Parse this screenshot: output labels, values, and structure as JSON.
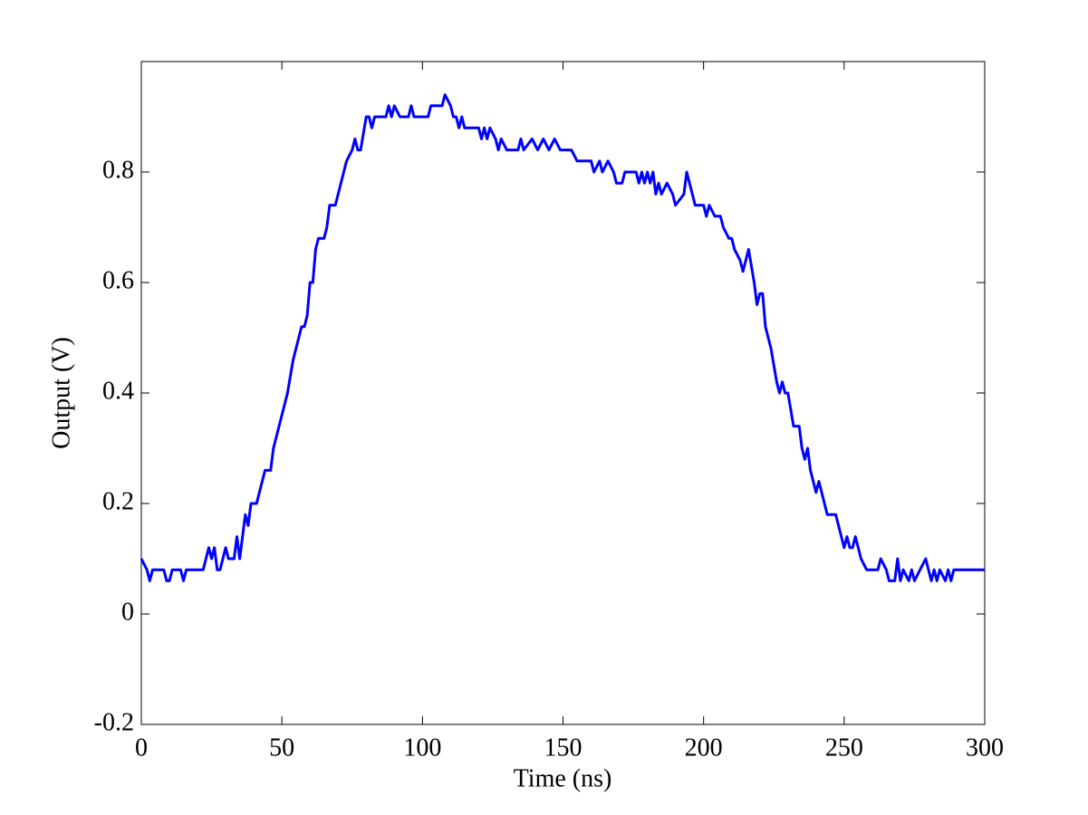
{
  "chart_data": {
    "type": "line",
    "xlabel": "Time (ns)",
    "ylabel": "Output (V)",
    "x": [
      0,
      2,
      3,
      4,
      8,
      9,
      10,
      11,
      14,
      15,
      16,
      22,
      23,
      24,
      25,
      26,
      27,
      28,
      30,
      31,
      33,
      34,
      35,
      36,
      37,
      38,
      39,
      41,
      43,
      44,
      46,
      47,
      48,
      50,
      51,
      52,
      54,
      56,
      57,
      58,
      59,
      60,
      61,
      62,
      63,
      65,
      66,
      67,
      69,
      71,
      73,
      75,
      76,
      77,
      78,
      80,
      81,
      82,
      83,
      87,
      88,
      89,
      90,
      92,
      95,
      96,
      97,
      102,
      103,
      107,
      108,
      110,
      111,
      112,
      113,
      114,
      115,
      120,
      121,
      122,
      123,
      124,
      126,
      127,
      128,
      130,
      134,
      135,
      136,
      139,
      141,
      143,
      145,
      147,
      149,
      150,
      153,
      155,
      160,
      161,
      163,
      164,
      166,
      168,
      169,
      171,
      172,
      176,
      177,
      178,
      179,
      180,
      181,
      182,
      183,
      184,
      185,
      187,
      189,
      190,
      193,
      194,
      196,
      197,
      200,
      201,
      202,
      204,
      206,
      207,
      209,
      210,
      211,
      213,
      214,
      216,
      218,
      219,
      220,
      221,
      222,
      224,
      226,
      227,
      228,
      229,
      230,
      232,
      234,
      235,
      236,
      237,
      238,
      240,
      241,
      242,
      244,
      247,
      248,
      249,
      250,
      251,
      252,
      253,
      254,
      256,
      258,
      262,
      263,
      265,
      266,
      268,
      269,
      270,
      271,
      273,
      274,
      275,
      277,
      279,
      281,
      282,
      283,
      284,
      286,
      287,
      288,
      289,
      300
    ],
    "values": [
      0.1,
      0.08,
      0.06,
      0.08,
      0.08,
      0.06,
      0.06,
      0.08,
      0.08,
      0.06,
      0.08,
      0.08,
      0.1,
      0.12,
      0.1,
      0.12,
      0.08,
      0.08,
      0.12,
      0.1,
      0.1,
      0.14,
      0.1,
      0.14,
      0.18,
      0.16,
      0.2,
      0.2,
      0.24,
      0.26,
      0.26,
      0.3,
      0.32,
      0.36,
      0.38,
      0.4,
      0.46,
      0.5,
      0.52,
      0.52,
      0.54,
      0.6,
      0.6,
      0.66,
      0.68,
      0.68,
      0.7,
      0.74,
      0.74,
      0.78,
      0.82,
      0.84,
      0.86,
      0.84,
      0.84,
      0.9,
      0.9,
      0.88,
      0.9,
      0.9,
      0.92,
      0.9,
      0.92,
      0.9,
      0.9,
      0.92,
      0.9,
      0.9,
      0.92,
      0.92,
      0.94,
      0.92,
      0.9,
      0.9,
      0.88,
      0.9,
      0.88,
      0.88,
      0.86,
      0.88,
      0.86,
      0.88,
      0.86,
      0.84,
      0.86,
      0.84,
      0.84,
      0.86,
      0.84,
      0.86,
      0.84,
      0.86,
      0.84,
      0.86,
      0.84,
      0.84,
      0.84,
      0.82,
      0.82,
      0.8,
      0.82,
      0.8,
      0.82,
      0.8,
      0.78,
      0.78,
      0.8,
      0.8,
      0.78,
      0.8,
      0.78,
      0.8,
      0.78,
      0.8,
      0.76,
      0.78,
      0.76,
      0.78,
      0.76,
      0.74,
      0.76,
      0.8,
      0.76,
      0.74,
      0.74,
      0.72,
      0.74,
      0.72,
      0.72,
      0.7,
      0.68,
      0.68,
      0.66,
      0.64,
      0.62,
      0.66,
      0.6,
      0.56,
      0.58,
      0.58,
      0.52,
      0.48,
      0.42,
      0.4,
      0.42,
      0.4,
      0.4,
      0.34,
      0.34,
      0.3,
      0.28,
      0.3,
      0.26,
      0.22,
      0.24,
      0.22,
      0.18,
      0.18,
      0.16,
      0.14,
      0.12,
      0.14,
      0.12,
      0.12,
      0.14,
      0.1,
      0.08,
      0.08,
      0.1,
      0.08,
      0.06,
      0.06,
      0.1,
      0.06,
      0.08,
      0.06,
      0.08,
      0.06,
      0.08,
      0.1,
      0.06,
      0.08,
      0.06,
      0.08,
      0.06,
      0.08,
      0.06,
      0.08,
      0.08
    ],
    "color": "#0000ff",
    "xlim": [
      0,
      300
    ],
    "xticks": [
      0,
      50,
      100,
      150,
      200,
      250,
      300
    ],
    "ylim": [
      -0.2,
      1.0
    ],
    "yticks": [
      -0.2,
      0,
      0.2,
      0.4,
      0.6,
      0.8
    ],
    "grid": false
  }
}
